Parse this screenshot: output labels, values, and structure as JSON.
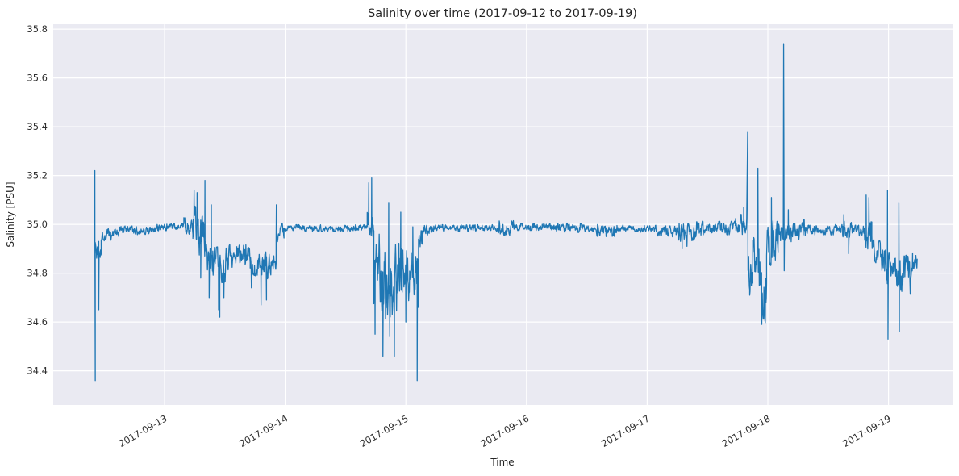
{
  "chart_data": {
    "type": "line",
    "title": "Salinity over time (2017-09-12 to 2017-09-19)",
    "xlabel": "Time",
    "ylabel": "Salinity [PSU]",
    "legend": null,
    "grid": true,
    "background_color": "#eaeaf2",
    "gridline_color": "#ffffff",
    "line_color": "#1f77b4",
    "text_color": "#262626",
    "ylim": [
      34.26,
      35.82
    ],
    "y_ticks": [
      34.4,
      34.6,
      34.8,
      35.0,
      35.2,
      35.4,
      35.6,
      35.8
    ],
    "x_axis_unit": "days since 2017-09-12 00:00",
    "xlim_days": [
      0.0776,
      7.531
    ],
    "x_ticks": [
      {
        "t": 1,
        "label": "2017-09-13"
      },
      {
        "t": 2,
        "label": "2017-09-14"
      },
      {
        "t": 3,
        "label": "2017-09-15"
      },
      {
        "t": 4,
        "label": "2017-09-16"
      },
      {
        "t": 5,
        "label": "2017-09-17"
      },
      {
        "t": 6,
        "label": "2017-09-18"
      },
      {
        "t": 7,
        "label": "2017-09-19"
      }
    ],
    "data_start_day": 0.42,
    "data_end_day": 7.238,
    "data_min": 34.36,
    "data_max": 35.74,
    "series": [
      {
        "name": "Salinity",
        "unit": "PSU",
        "color": "#1f77b4",
        "envelope_segments": [
          [
            0.42,
            0.432,
            34.95,
            34.9,
            0.045
          ],
          [
            0.432,
            0.475,
            34.88,
            34.95,
            0.062
          ],
          [
            0.475,
            0.62,
            34.955,
            34.965,
            0.022
          ],
          [
            0.62,
            0.95,
            34.975,
            34.98,
            0.017
          ],
          [
            0.95,
            1.16,
            34.988,
            34.99,
            0.013
          ],
          [
            1.16,
            1.235,
            34.995,
            34.99,
            0.028
          ],
          [
            1.235,
            1.325,
            34.99,
            34.95,
            0.08
          ],
          [
            1.325,
            1.4,
            34.87,
            34.86,
            0.075
          ],
          [
            1.4,
            1.53,
            34.83,
            34.84,
            0.065
          ],
          [
            1.53,
            1.71,
            34.87,
            34.87,
            0.04
          ],
          [
            1.71,
            1.87,
            34.85,
            34.83,
            0.048
          ],
          [
            1.87,
            1.925,
            34.82,
            34.87,
            0.045
          ],
          [
            1.925,
            1.99,
            34.955,
            34.975,
            0.03
          ],
          [
            1.99,
            2.68,
            34.985,
            34.985,
            0.012
          ],
          [
            2.68,
            2.735,
            34.995,
            34.99,
            0.05
          ],
          [
            2.735,
            2.97,
            34.8,
            34.78,
            0.155
          ],
          [
            2.97,
            3.085,
            34.78,
            34.77,
            0.1
          ],
          [
            3.085,
            3.105,
            34.76,
            34.9,
            0.11
          ],
          [
            3.105,
            3.135,
            34.93,
            34.965,
            0.04
          ],
          [
            3.135,
            3.21,
            34.975,
            34.98,
            0.024
          ],
          [
            3.21,
            3.755,
            34.985,
            34.985,
            0.012
          ],
          [
            3.755,
            3.905,
            34.985,
            34.985,
            0.026
          ],
          [
            3.905,
            4.2,
            34.99,
            34.99,
            0.013
          ],
          [
            4.2,
            4.46,
            34.99,
            34.985,
            0.017
          ],
          [
            4.46,
            4.58,
            34.985,
            34.98,
            0.013
          ],
          [
            4.58,
            4.75,
            34.975,
            34.975,
            0.021
          ],
          [
            4.75,
            5.06,
            34.985,
            34.98,
            0.012
          ],
          [
            5.06,
            5.24,
            34.975,
            34.97,
            0.019
          ],
          [
            5.24,
            5.46,
            34.965,
            34.975,
            0.033
          ],
          [
            5.46,
            5.73,
            34.985,
            34.985,
            0.024
          ],
          [
            5.73,
            5.825,
            34.99,
            35.0,
            0.042
          ],
          [
            5.836,
            5.875,
            34.8,
            34.78,
            0.075
          ],
          [
            5.875,
            5.915,
            34.88,
            34.9,
            0.095
          ],
          [
            5.921,
            5.99,
            34.78,
            34.72,
            0.115
          ],
          [
            5.99,
            6.085,
            34.9,
            34.95,
            0.075
          ],
          [
            6.085,
            6.128,
            34.96,
            34.97,
            0.042
          ],
          [
            6.138,
            6.31,
            34.975,
            34.975,
            0.04
          ],
          [
            6.31,
            6.62,
            34.98,
            34.98,
            0.02
          ],
          [
            6.62,
            6.705,
            34.975,
            34.975,
            0.036
          ],
          [
            6.705,
            6.8,
            34.97,
            34.975,
            0.022
          ],
          [
            6.8,
            6.862,
            34.96,
            34.95,
            0.052
          ],
          [
            6.862,
            6.968,
            34.92,
            34.85,
            0.048
          ],
          [
            6.968,
            7.085,
            34.82,
            34.78,
            0.068
          ],
          [
            7.085,
            7.2,
            34.78,
            34.8,
            0.072
          ],
          [
            7.2,
            7.238,
            34.83,
            34.86,
            0.032
          ]
        ],
        "spikes": [
          [
            0.4225,
            35.22
          ],
          [
            0.426,
            34.36
          ],
          [
            0.455,
            34.65
          ],
          [
            1.245,
            35.14
          ],
          [
            1.27,
            35.13
          ],
          [
            1.3,
            34.78
          ],
          [
            1.335,
            35.18
          ],
          [
            1.37,
            34.7
          ],
          [
            1.388,
            35.08
          ],
          [
            1.448,
            34.65
          ],
          [
            1.458,
            34.62
          ],
          [
            1.492,
            34.7
          ],
          [
            1.72,
            34.74
          ],
          [
            1.8,
            34.67
          ],
          [
            1.845,
            34.69
          ],
          [
            1.927,
            35.08
          ],
          [
            2.693,
            35.17
          ],
          [
            2.717,
            35.19
          ],
          [
            2.745,
            34.55
          ],
          [
            2.81,
            34.46
          ],
          [
            2.858,
            35.09
          ],
          [
            2.867,
            34.54
          ],
          [
            2.905,
            34.46
          ],
          [
            2.958,
            35.05
          ],
          [
            3.0,
            34.6
          ],
          [
            3.058,
            34.99
          ],
          [
            3.094,
            34.36
          ],
          [
            3.103,
            34.66
          ],
          [
            4.66,
            34.95
          ],
          [
            5.29,
            34.9
          ],
          [
            5.33,
            34.91
          ],
          [
            5.8,
            35.07
          ],
          [
            5.833,
            35.38
          ],
          [
            5.85,
            34.71
          ],
          [
            5.918,
            35.23
          ],
          [
            5.95,
            34.59
          ],
          [
            6.03,
            35.11
          ],
          [
            6.131,
            35.74
          ],
          [
            6.136,
            34.81
          ],
          [
            6.17,
            35.06
          ],
          [
            6.63,
            35.04
          ],
          [
            6.67,
            34.88
          ],
          [
            6.815,
            35.12
          ],
          [
            6.838,
            35.11
          ],
          [
            6.992,
            35.14
          ],
          [
            6.996,
            34.53
          ],
          [
            7.086,
            35.09
          ],
          [
            7.09,
            34.56
          ]
        ]
      }
    ]
  }
}
